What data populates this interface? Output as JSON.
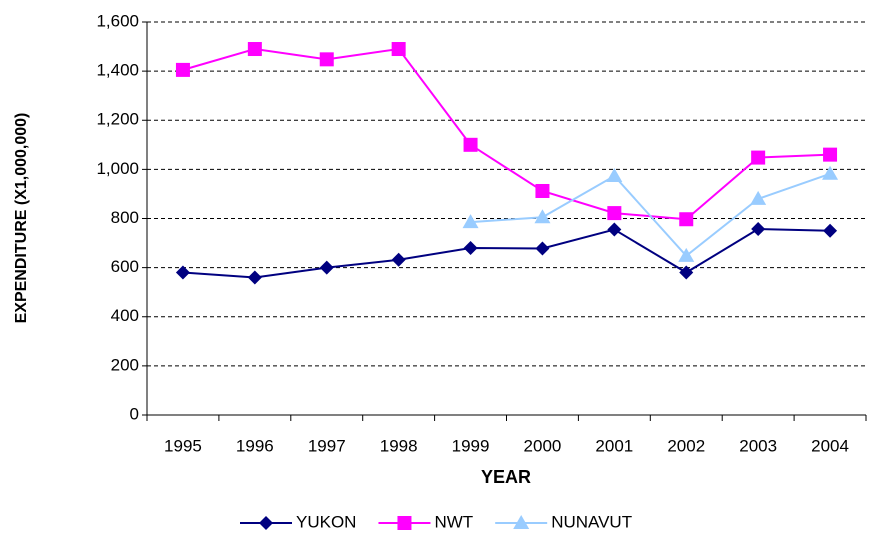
{
  "chart_data": {
    "type": "line",
    "x_label": "YEAR",
    "y_label": "EXPENDITURE (X1,000,000)",
    "categories": [
      "1995",
      "1996",
      "1997",
      "1998",
      "1999",
      "2000",
      "2001",
      "2002",
      "2003",
      "2004"
    ],
    "series": [
      {
        "name": "YUKON",
        "color": "#000080",
        "marker": "diamond",
        "values": [
          580,
          560,
          600,
          632,
          680,
          678,
          755,
          580,
          757,
          750
        ]
      },
      {
        "name": "NWT",
        "color": "#ff00ff",
        "marker": "square",
        "values": [
          1405,
          1490,
          1448,
          1490,
          1100,
          912,
          822,
          797,
          1048,
          1060
        ]
      },
      {
        "name": "NUNAVUT",
        "color": "#99ccff",
        "marker": "triangle",
        "values": [
          null,
          null,
          null,
          null,
          785,
          805,
          973,
          648,
          880,
          982
        ]
      }
    ],
    "ylim": [
      0,
      1600
    ],
    "yticks": [
      0,
      200,
      400,
      600,
      800,
      {
        "value": 1000,
        "label": "1,000"
      },
      {
        "value": 1200,
        "label": "1,200"
      },
      {
        "value": 1400,
        "label": "1,400"
      },
      {
        "value": 1600,
        "label": "1,600"
      }
    ],
    "grid": true,
    "legend": "bottom"
  }
}
